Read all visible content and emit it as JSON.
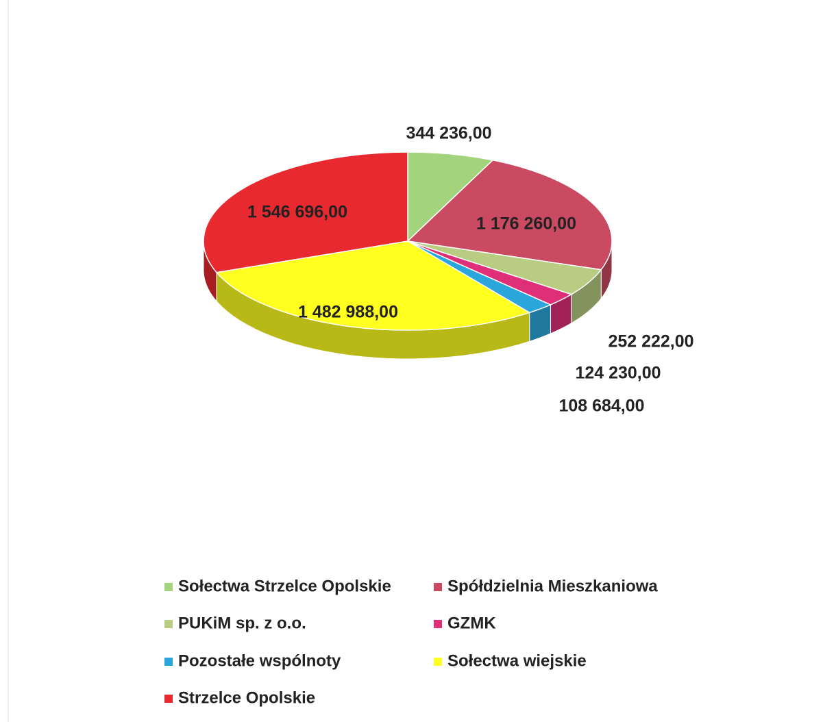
{
  "chart_data": {
    "type": "pie3d",
    "categories": [
      "Sołectwa Strzelce Opolskie",
      "Spółdzielnia Mieszkaniowa",
      "PUKiM sp. z o.o.",
      "GZMK",
      "Pozostałe wspólnoty",
      "Sołectwa wiejskie",
      "Strzelce Opolskie"
    ],
    "values": [
      344236,
      1176260,
      252222,
      124230,
      108684,
      1482988,
      1546696
    ],
    "value_labels": [
      "344 236,00",
      "1 176 260,00",
      "252 222,00",
      "124 230,00",
      "108 684,00",
      "1 482 988,00",
      "1 546 696,00"
    ],
    "colors": [
      "#a3d37c",
      "#c94a61",
      "#b8cc82",
      "#df2f78",
      "#2ba6dc",
      "#ffff20",
      "#e8292f"
    ],
    "legend": "bottom"
  }
}
